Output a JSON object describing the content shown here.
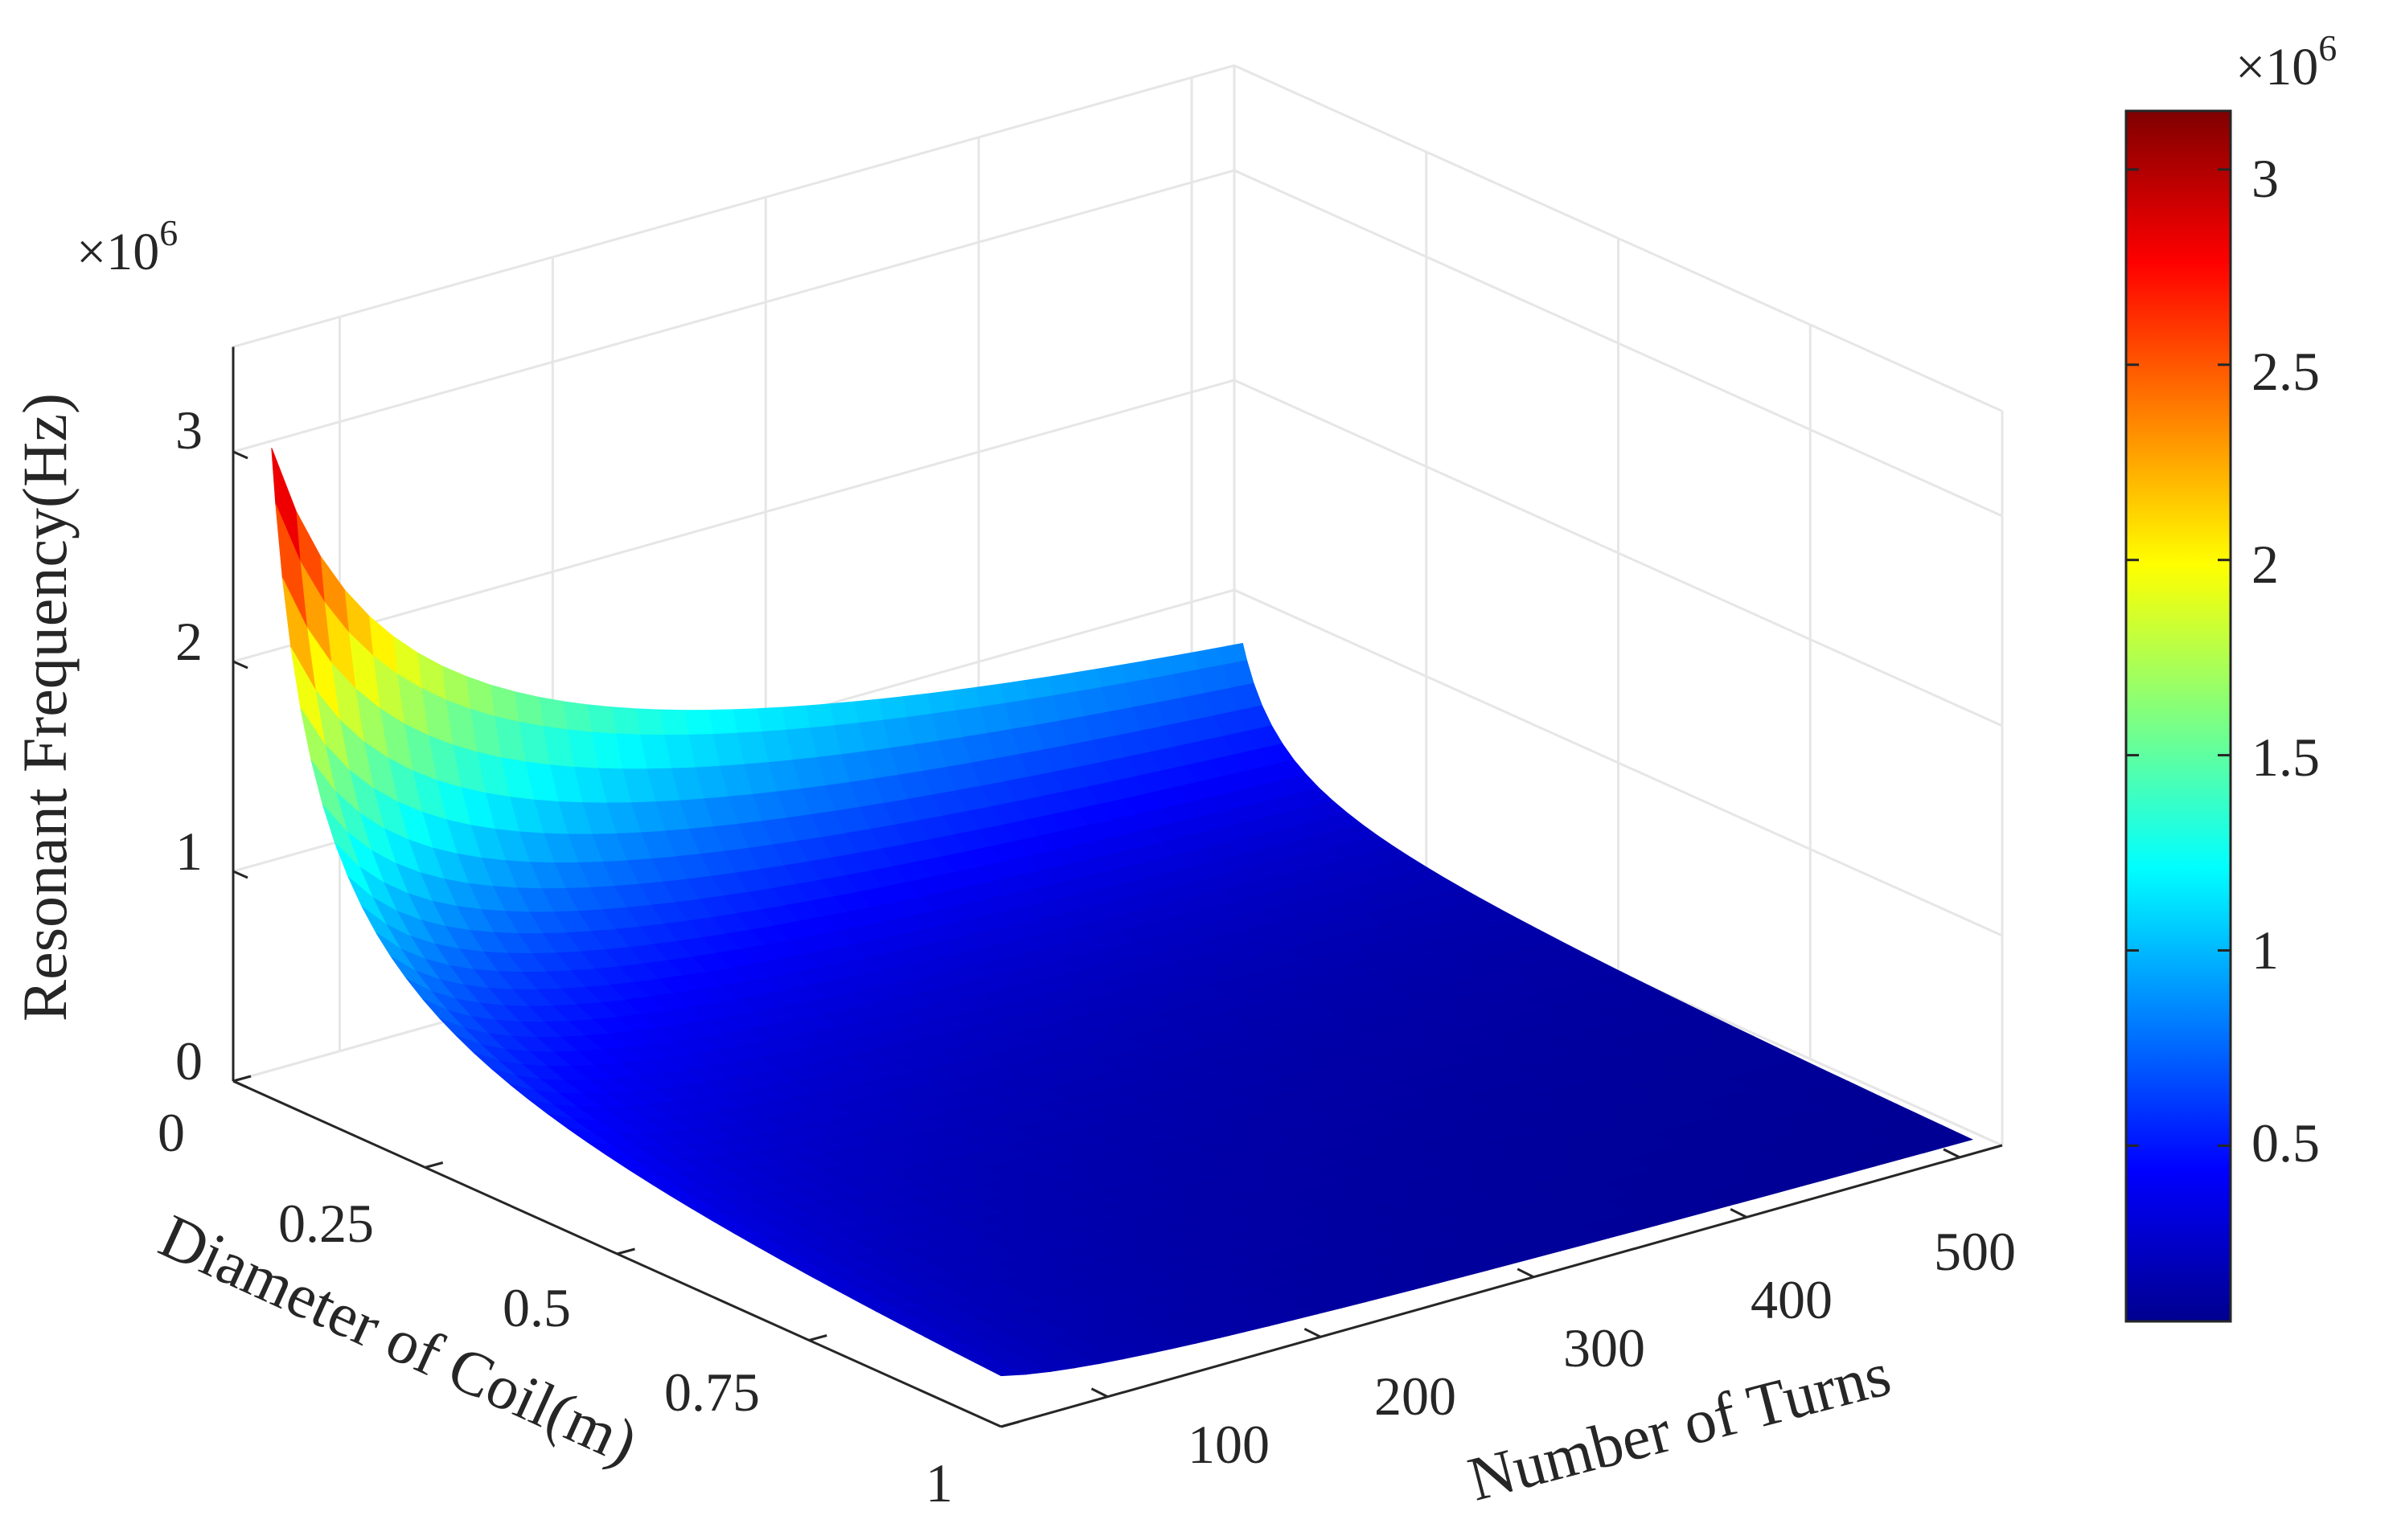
{
  "chart_data": {
    "type": "surface",
    "title": "",
    "xlabel": "Number of Turns",
    "ylabel": "Diameter of Coil(m)",
    "zlabel": "Resonant Frequency(Hz)",
    "z_multiplier": "×10",
    "z_multiplier_exponent": "6",
    "x_ticks": [
      "100",
      "200",
      "300",
      "400",
      "500"
    ],
    "y_ticks": [
      "0",
      "0.25",
      "0.5",
      "0.75",
      "1"
    ],
    "z_ticks": [
      "0",
      "1",
      "2",
      "3"
    ],
    "xlim": [
      50,
      520
    ],
    "ylim": [
      0,
      1
    ],
    "zlim": [
      0,
      3.5
    ],
    "grid": true,
    "colormap": "jet",
    "surface": {
      "turns": [
        50,
        100,
        200,
        300,
        400,
        500
      ],
      "diameter": [
        0.05,
        0.1,
        0.25,
        0.5,
        0.75,
        0.9
      ],
      "frequency_MHz": [
        [
          3.1,
          2.2,
          1.6,
          1.1,
          1.0,
          0.9
        ],
        [
          2.2,
          1.5,
          0.9,
          0.65,
          0.5,
          0.45
        ],
        [
          0.9,
          0.6,
          0.4,
          0.3,
          0.22,
          0.18
        ],
        [
          0.45,
          0.3,
          0.2,
          0.14,
          0.1,
          0.08
        ],
        [
          0.3,
          0.2,
          0.12,
          0.09,
          0.06,
          0.05
        ],
        [
          0.22,
          0.16,
          0.1,
          0.07,
          0.05,
          0.04
        ]
      ]
    },
    "colorbar": {
      "ticks": [
        "0.5",
        "1",
        "1.5",
        "2",
        "2.5",
        "3"
      ],
      "multiplier": "×10",
      "multiplier_exponent": "6",
      "range": [
        0.05,
        3.15
      ],
      "colors": [
        "#00008f",
        "#0000ff",
        "#00ffff",
        "#ffff00",
        "#ff0000",
        "#800000"
      ]
    }
  }
}
